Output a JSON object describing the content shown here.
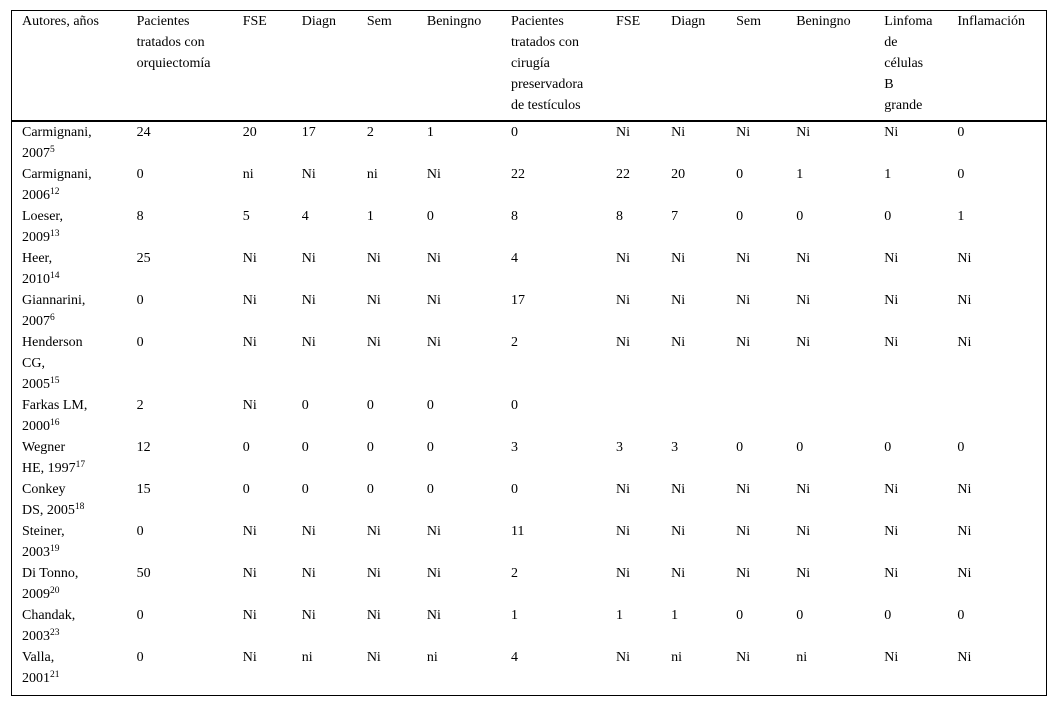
{
  "page": {
    "background_color": "#ffffff",
    "text_color": "#000000",
    "rule_color": "#000000"
  },
  "table": {
    "columns": [
      {
        "label": "Autores, años"
      },
      {
        "label": "Pacientes\ntratados con\norquiectomía"
      },
      {
        "label": "FSE"
      },
      {
        "label": "Diagn"
      },
      {
        "label": "Sem"
      },
      {
        "label": "Beningno"
      },
      {
        "label": "Pacientes\ntratados con\ncirugía\npreservadora\nde testículos"
      },
      {
        "label": "FSE"
      },
      {
        "label": "Diagn"
      },
      {
        "label": "Sem"
      },
      {
        "label": "Beningno"
      },
      {
        "label": "Linfoma\nde\ncélulas\nB\ngrande"
      },
      {
        "label": "Inflamación"
      }
    ],
    "rows": [
      {
        "author_lines": [
          "Carmignani,",
          "2007"
        ],
        "ref": "5",
        "cells": [
          "24",
          "20",
          "17",
          "2",
          "1",
          "0",
          "Ni",
          "Ni",
          "Ni",
          "Ni",
          "Ni",
          "0"
        ]
      },
      {
        "author_lines": [
          "Carmignani,",
          "2006"
        ],
        "ref": "12",
        "cells": [
          "0",
          "ni",
          "Ni",
          "ni",
          "Ni",
          "22",
          "22",
          "20",
          "0",
          "1",
          "1",
          "0"
        ]
      },
      {
        "author_lines": [
          "Loeser,",
          "2009"
        ],
        "ref": "13",
        "cells": [
          "8",
          "5",
          "4",
          "1",
          "0",
          "8",
          "8",
          "7",
          "0",
          "0",
          "0",
          "1"
        ]
      },
      {
        "author_lines": [
          "Heer,",
          "2010"
        ],
        "ref": "14",
        "cells": [
          "25",
          "Ni",
          "Ni",
          "Ni",
          "Ni",
          "4",
          "Ni",
          "Ni",
          "Ni",
          "Ni",
          "Ni",
          "Ni"
        ]
      },
      {
        "author_lines": [
          "Giannarini,",
          "2007"
        ],
        "ref": "6",
        "cells": [
          "0",
          "Ni",
          "Ni",
          "Ni",
          "Ni",
          "17",
          "Ni",
          "Ni",
          "Ni",
          "Ni",
          "Ni",
          "Ni"
        ]
      },
      {
        "author_lines": [
          "Henderson",
          "CG,",
          "2005"
        ],
        "ref": "15",
        "cells": [
          "0",
          "Ni",
          "Ni",
          "Ni",
          "Ni",
          "2",
          "Ni",
          "Ni",
          "Ni",
          "Ni",
          "Ni",
          "Ni"
        ]
      },
      {
        "author_lines": [
          "Farkas LM,",
          "2000"
        ],
        "ref": "16",
        "cells": [
          "2",
          "Ni",
          "0",
          "0",
          "0",
          "0",
          "",
          "",
          "",
          "",
          "",
          ""
        ]
      },
      {
        "author_lines": [
          "Wegner",
          "HE, 1997"
        ],
        "ref": "17",
        "cells": [
          "12",
          "0",
          "0",
          "0",
          "0",
          "3",
          "3",
          "3",
          "0",
          "0",
          "0",
          "0"
        ]
      },
      {
        "author_lines": [
          "Conkey",
          "DS, 2005"
        ],
        "ref": "18",
        "cells": [
          "15",
          "0",
          "0",
          "0",
          "0",
          "0",
          "Ni",
          "Ni",
          "Ni",
          "Ni",
          "Ni",
          "Ni"
        ]
      },
      {
        "author_lines": [
          "Steiner,",
          "2003"
        ],
        "ref": "19",
        "cells": [
          "0",
          "Ni",
          "Ni",
          "Ni",
          "Ni",
          "11",
          "Ni",
          "Ni",
          "Ni",
          "Ni",
          "Ni",
          "Ni"
        ]
      },
      {
        "author_lines": [
          "Di Tonno,",
          "2009"
        ],
        "ref": "20",
        "cells": [
          "50",
          "Ni",
          "Ni",
          "Ni",
          "Ni",
          "2",
          "Ni",
          "Ni",
          "Ni",
          "Ni",
          "Ni",
          "Ni"
        ]
      },
      {
        "author_lines": [
          "Chandak,",
          "2003"
        ],
        "ref": "23",
        "cells": [
          "0",
          "Ni",
          "Ni",
          "Ni",
          "Ni",
          "1",
          "1",
          "1",
          "0",
          "0",
          "0",
          "0"
        ]
      },
      {
        "author_lines": [
          "Valla,",
          "2001"
        ],
        "ref": "21",
        "cells": [
          "0",
          "Ni",
          "ni",
          "Ni",
          "ni",
          "4",
          "Ni",
          "ni",
          "Ni",
          "ni",
          "Ni",
          "Ni"
        ]
      }
    ]
  }
}
